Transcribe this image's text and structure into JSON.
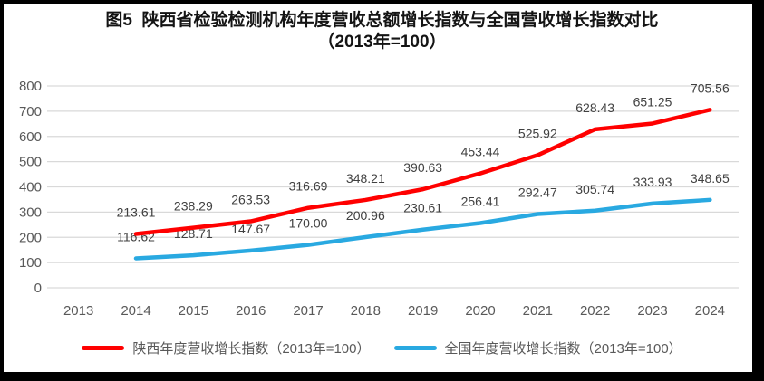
{
  "title": {
    "line1": "图5  陕西省检验检测机构年度营收总额增长指数与全国营收增长指数对比",
    "line2": "（2013年=100）"
  },
  "chart_data": {
    "type": "line",
    "title": "图5 陕西省检验检测机构年度营收总额增长指数与全国营收增长指数对比（2013年=100）",
    "categories": [
      "2013",
      "2014",
      "2015",
      "2016",
      "2017",
      "2018",
      "2019",
      "2020",
      "2021",
      "2022",
      "2023",
      "2024"
    ],
    "series": [
      {
        "name": "陕西年度营收增长指数（2013年=100）",
        "color": "#FF0000",
        "first_category": "2014",
        "values": [
          213.61,
          238.29,
          263.53,
          316.69,
          348.21,
          390.63,
          453.44,
          525.92,
          628.43,
          651.25,
          705.56
        ]
      },
      {
        "name": "全国年度营收增长指数（2013年=100）",
        "color": "#29A9E1",
        "first_category": "2014",
        "values": [
          116.62,
          128.71,
          147.67,
          170.0,
          200.96,
          230.61,
          256.41,
          292.47,
          305.74,
          333.93,
          348.65
        ]
      }
    ],
    "xlabel": "",
    "ylabel": "",
    "ylim": [
      0,
      800
    ],
    "ytick_step": 100,
    "yticks": [
      "0",
      "100",
      "200",
      "300",
      "400",
      "500",
      "600",
      "700",
      "800"
    ],
    "grid": true,
    "markers": false,
    "legend_position": "bottom",
    "data_labels": true
  },
  "colors": {
    "shaanxi_red": "#FF0000",
    "national_blue": "#29A9E1",
    "grid_line": "#D9D9D9",
    "axis_text": "#595959",
    "data_label_text": "#404040",
    "title_text": "#141414",
    "frame": "#000000",
    "background": "#FFFFFF"
  }
}
